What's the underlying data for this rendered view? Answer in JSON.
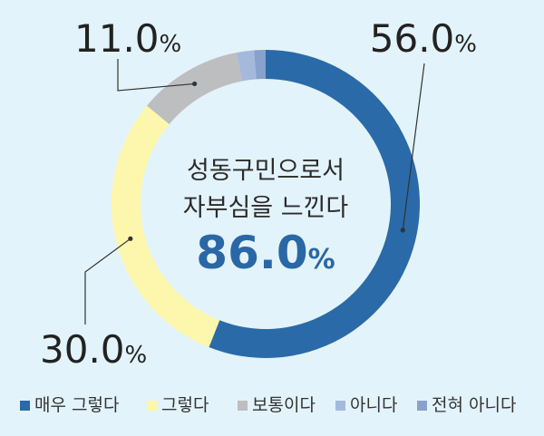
{
  "chart_data": {
    "type": "donut",
    "title_line1": "성동구민으로서",
    "title_line2": "자부심을 느낀다",
    "highlight_value": "86.0",
    "highlight_unit": "%",
    "categories": [
      "매우 그렇다",
      "그렇다",
      "보통이다",
      "아니다",
      "전혀 아니다"
    ],
    "values": [
      56.0,
      30.0,
      11.0,
      1.8,
      1.2
    ],
    "value_labels": [
      "56.0",
      "30.0",
      "11.0",
      "",
      ""
    ],
    "unit": "%",
    "colors": [
      "#2a6aa8",
      "#fdf7ad",
      "#bdbec0",
      "#a4b9dc",
      "#8aa1cb"
    ],
    "legend_position": "bottom"
  }
}
